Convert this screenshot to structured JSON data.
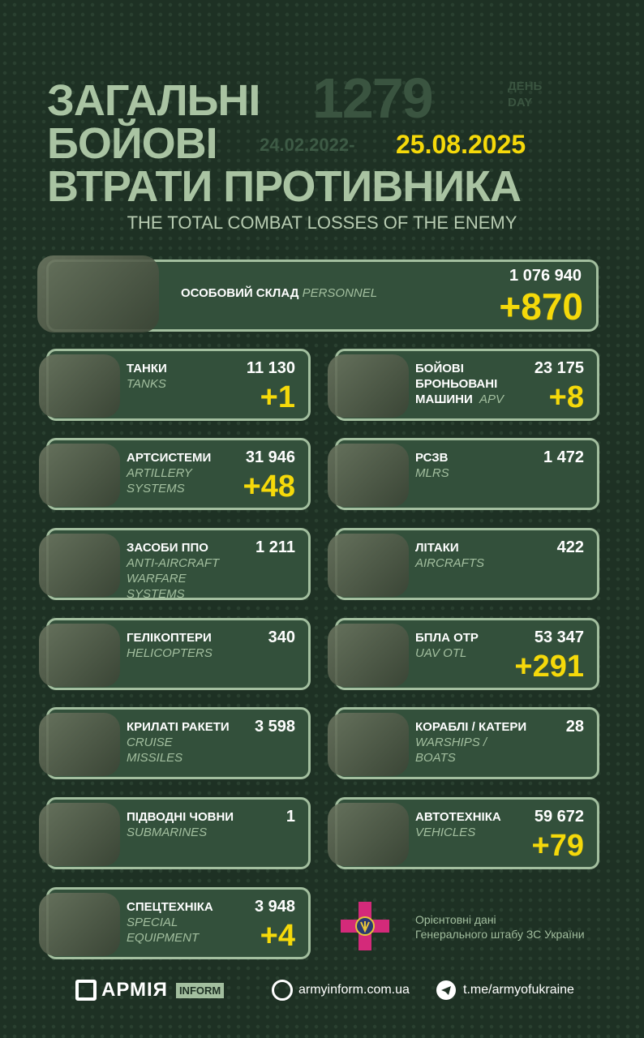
{
  "header": {
    "line1": "ЗАГАЛЬНІ",
    "line2": "БОЙОВІ",
    "line3": "ВТРАТИ ПРОТИВНИКА",
    "day_number": "1279",
    "day_ua": "ДЕНЬ",
    "day_en": "DAY",
    "start_date": "24.02.2022-",
    "current_date": "25.08.2025",
    "subtitle": "THE TOTAL COMBAT LOSSES OF THE ENEMY"
  },
  "personnel": {
    "ua": "ОСОБОВИЙ СКЛАД",
    "en": "PERSONNEL",
    "total": "1 076 940",
    "increase": "+870"
  },
  "cards": [
    {
      "ua": "ТАНКИ",
      "en": "TANKS",
      "total": "11 130",
      "increase": "+1"
    },
    {
      "ua": "БОЙОВІ БРОНЬОВАНІ МАШИНИ",
      "en": "APV",
      "total": "23 175",
      "increase": "+8"
    },
    {
      "ua": "АРТСИСТЕМИ",
      "en": "ARTILLERY SYSTEMS",
      "total": "31 946",
      "increase": "+48"
    },
    {
      "ua": "РСЗВ",
      "en": "MLRS",
      "total": "1 472",
      "increase": ""
    },
    {
      "ua": "ЗАСОБИ ППО",
      "en": "ANTI-AIRCRAFT WARFARE SYSTEMS",
      "total": "1 211",
      "increase": ""
    },
    {
      "ua": "ЛІТАКИ",
      "en": "AIRCRAFTS",
      "total": "422",
      "increase": ""
    },
    {
      "ua": "ГЕЛІКОПТЕРИ",
      "en": "HELICOPTERS",
      "total": "340",
      "increase": ""
    },
    {
      "ua": "БПЛА ОТР",
      "en": "UAV OTL",
      "total": "53 347",
      "increase": "+291"
    },
    {
      "ua": "КРИЛАТІ РАКЕТИ",
      "en": "CRUISE MISSILES",
      "total": "3 598",
      "increase": ""
    },
    {
      "ua": "КОРАБЛІ / КАТЕРИ",
      "en": "WARSHIPS / BOATS",
      "total": "28",
      "increase": ""
    },
    {
      "ua": "ПІДВОДНІ ЧОВНИ",
      "en": "SUBMARINES",
      "total": "1",
      "increase": ""
    },
    {
      "ua": "АВТОТЕХНІКА",
      "en": "VEHICLES",
      "total": "59 672",
      "increase": "+79"
    },
    {
      "ua": "СПЕЦТЕХНІКА",
      "en": "SPECIAL EQUIPMENT",
      "total": "3 948",
      "increase": "+4"
    }
  ],
  "source": {
    "line1": "Орієнтовні дані",
    "line2": "Генерального штабу ЗС України"
  },
  "footer": {
    "logo_text": "АРМІЯ",
    "logo_badge": "INFORM",
    "website": "armyinform.com.ua",
    "telegram": "t.me/armyofukraine"
  },
  "colors": {
    "background": "#1e3124",
    "card": "#33503b",
    "accent": "#f5d90a",
    "heading": "#a9c3a2"
  }
}
